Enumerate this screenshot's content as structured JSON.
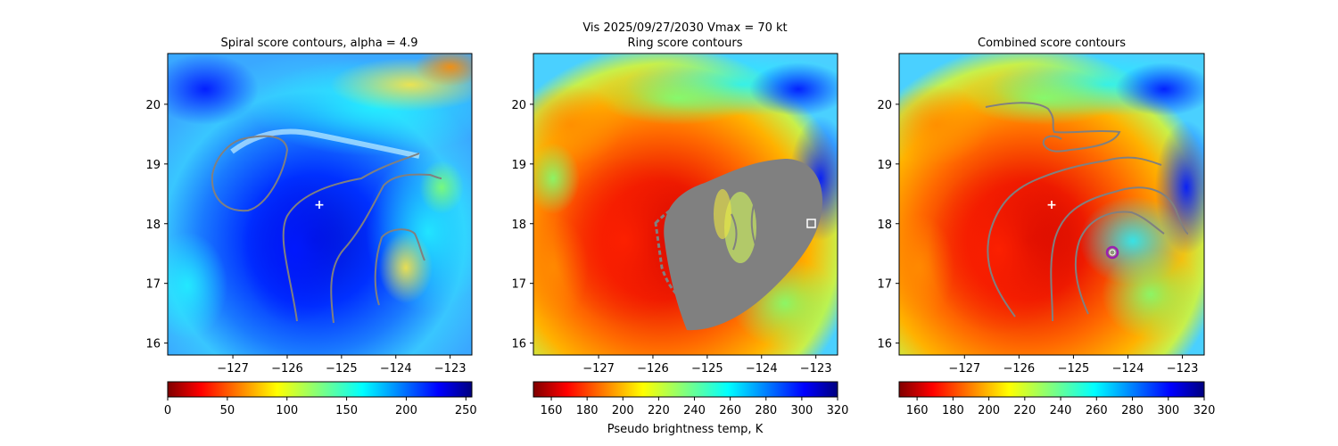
{
  "figure": {
    "suptitle_line1": "Vis  2025/09/27/2030    Vmax = 70 kt",
    "colorbar_label": "Pseudo brightness temp, K"
  },
  "colors": {
    "contour": "#808080",
    "marker_white": "#ffffff",
    "marker_purple": "#9b1fb0",
    "jet": [
      "#00007f",
      "#0000ff",
      "#007fff",
      "#00ffff",
      "#7fff7f",
      "#ffff00",
      "#ff7f00",
      "#ff0000",
      "#7f0000"
    ]
  },
  "chart_data": [
    {
      "type": "heatmap",
      "title": "Spiral score contours, alpha =  4.9",
      "colormap": "jet",
      "xlim": [
        -128.2,
        -122.6
      ],
      "ylim": [
        15.8,
        20.85
      ],
      "xticks": [
        "−127",
        "−126",
        "−125",
        "−124",
        "−123"
      ],
      "xtick_values": [
        -127,
        -126,
        -125,
        -124,
        -123
      ],
      "yticks": [
        "16",
        "17",
        "18",
        "19",
        "20"
      ],
      "ytick_values": [
        16,
        17,
        18,
        19,
        20
      ],
      "colorbar": {
        "ticks": [
          "0",
          "50",
          "100",
          "150",
          "200",
          "250"
        ],
        "tick_values": [
          0,
          50,
          100,
          150,
          200,
          250
        ],
        "range": [
          0,
          255
        ]
      },
      "center_marker": {
        "symbol": "+",
        "lon": -125.3,
        "lat": 18.33
      }
    },
    {
      "type": "heatmap",
      "title": "Ring score contours",
      "colormap": "jet_r",
      "xlim": [
        -128.2,
        -122.6
      ],
      "ylim": [
        15.8,
        20.85
      ],
      "xticks": [
        "−127",
        "−126",
        "−125",
        "−124",
        "−123"
      ],
      "xtick_values": [
        -127,
        -126,
        -125,
        -124,
        -123
      ],
      "yticks": [
        "16",
        "17",
        "18",
        "19",
        "20"
      ],
      "ytick_values": [
        16,
        17,
        18,
        19,
        20
      ],
      "colorbar": {
        "ticks": [
          "160",
          "180",
          "200",
          "220",
          "240",
          "260",
          "280",
          "300",
          "320"
        ],
        "tick_values": [
          160,
          180,
          200,
          220,
          240,
          260,
          280,
          300,
          320
        ],
        "range": [
          150,
          320
        ]
      },
      "ring_marker": {
        "symbol": "square",
        "lon": -123.05,
        "lat": 18.0
      }
    },
    {
      "type": "heatmap",
      "title": "Combined score contours",
      "colormap": "jet_r",
      "xlim": [
        -128.2,
        -122.6
      ],
      "ylim": [
        15.8,
        20.85
      ],
      "xticks": [
        "−127",
        "−126",
        "−125",
        "−124",
        "−123"
      ],
      "xtick_values": [
        -127,
        -126,
        -125,
        -124,
        -123
      ],
      "yticks": [
        "16",
        "17",
        "18",
        "19",
        "20"
      ],
      "ytick_values": [
        16,
        17,
        18,
        19,
        20
      ],
      "colorbar": {
        "ticks": [
          "160",
          "180",
          "200",
          "220",
          "240",
          "260",
          "280",
          "300",
          "320"
        ],
        "tick_values": [
          160,
          180,
          200,
          220,
          240,
          260,
          280,
          300,
          320
        ],
        "range": [
          150,
          320
        ]
      },
      "center_marker": {
        "symbol": "+",
        "lon": -125.3,
        "lat": 18.33
      },
      "best_marker": {
        "symbol": "circle",
        "lon": -124.2,
        "lat": 17.55
      }
    }
  ]
}
